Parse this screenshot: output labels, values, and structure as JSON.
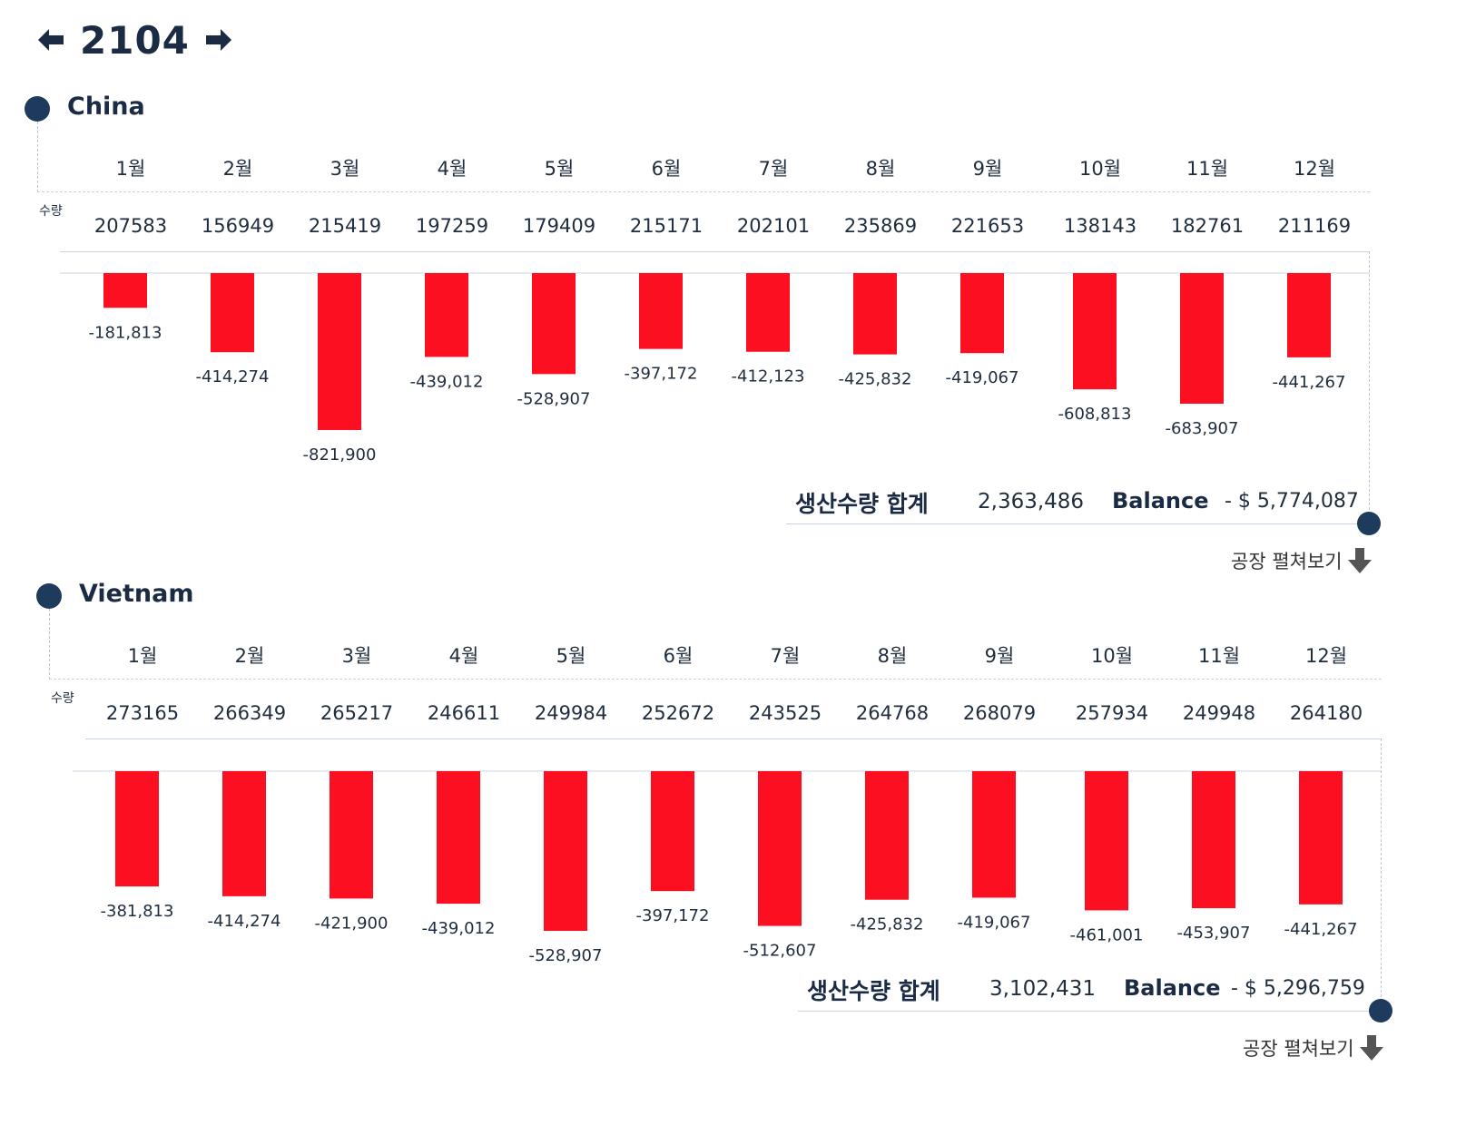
{
  "header": {
    "year": "2104"
  },
  "months": [
    "1월",
    "2월",
    "3월",
    "4월",
    "5월",
    "6월",
    "7월",
    "8월",
    "9월",
    "10월",
    "11월",
    "12월"
  ],
  "qty_label": "수량",
  "sum_title": "생산수량 합계",
  "balance_title": "Balance",
  "expand_label": "공장 펼쳐보기",
  "colors": {
    "bar": "#fb0f21",
    "accent": "#1e3a5c"
  },
  "sections": [
    {
      "country": "China",
      "quantities": [
        "207583",
        "156949",
        "215419",
        "197259",
        "179409",
        "215171",
        "202101",
        "235869",
        "221653",
        "138143",
        "182761",
        "211169"
      ],
      "bar_labels": [
        "-181,813",
        "-414,274",
        "-821,900",
        "-439,012",
        "-528,907",
        "-397,172",
        "-412,123",
        "-425,832",
        "-419,067",
        "-608,813",
        "-683,907",
        "-441,267"
      ],
      "sum_value": "2,363,486",
      "balance_value": "- $ 5,774,087"
    },
    {
      "country": "Vietnam",
      "quantities": [
        "273165",
        "266349",
        "265217",
        "246611",
        "249984",
        "252672",
        "243525",
        "264768",
        "268079",
        "257934",
        "249948",
        "264180"
      ],
      "bar_labels": [
        "-381,813",
        "-414,274",
        "-421,900",
        "-439,012",
        "-528,907",
        "-397,172",
        "-512,607",
        "-425,832",
        "-419,067",
        "-461,001",
        "-453,907",
        "-441,267"
      ],
      "sum_value": "3,102,431",
      "balance_value": "- $ 5,296,759"
    }
  ],
  "chart_data": [
    {
      "type": "bar",
      "categories": [
        "1월",
        "2월",
        "3월",
        "4월",
        "5월",
        "6월",
        "7월",
        "8월",
        "9월",
        "10월",
        "11월",
        "12월"
      ],
      "values": [
        -181813,
        -414274,
        -821900,
        -439012,
        -528907,
        -397172,
        -412123,
        -425832,
        -419067,
        -608813,
        -683907,
        -441267
      ],
      "title": "China"
    },
    {
      "type": "bar",
      "categories": [
        "1월",
        "2월",
        "3월",
        "4월",
        "5월",
        "6월",
        "7월",
        "8월",
        "9월",
        "10월",
        "11월",
        "12월"
      ],
      "values": [
        -381813,
        -414274,
        -421900,
        -439012,
        -528907,
        -397172,
        -512607,
        -425832,
        -419067,
        -461001,
        -453907,
        -441267
      ],
      "title": "Vietnam"
    }
  ]
}
